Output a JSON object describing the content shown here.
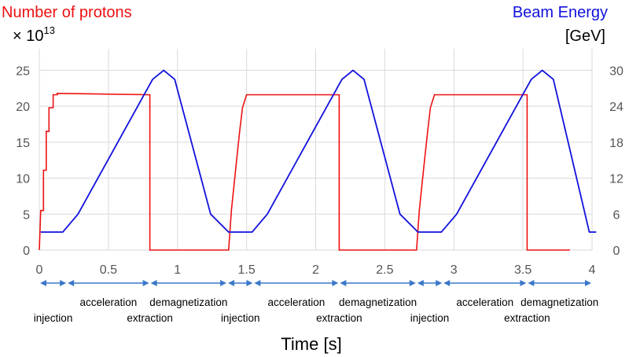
{
  "chart_data": {
    "type": "line",
    "left_title": "Number of protons",
    "left_multiplier_base": "× 10",
    "left_multiplier_exp": "13",
    "right_title": "Beam Energy",
    "right_unit": "[GeV]",
    "xlabel": "Time [s]",
    "xlim": [
      0,
      4
    ],
    "y_left_lim": [
      0,
      28
    ],
    "y_right_lim": [
      0,
      33.6
    ],
    "x_ticks": [
      "0",
      "0.5",
      "1",
      "1.5",
      "2",
      "2.5",
      "3",
      "3.5",
      "4"
    ],
    "y_left_ticks": [
      "0",
      "5",
      "10",
      "15",
      "20",
      "25"
    ],
    "y_right_ticks": [
      "0",
      "6",
      "12",
      "18",
      "24",
      "30"
    ],
    "grid": true,
    "colors": {
      "protons": "#ee1111",
      "energy": "#1111dd",
      "arrows": "#3a78c8",
      "grid": "#d9d9d9",
      "axis_text": "#555555"
    },
    "series": [
      {
        "name": "Number of protons",
        "axis": "left",
        "x": [
          0.0,
          0.01,
          0.03,
          0.03,
          0.05,
          0.05,
          0.07,
          0.07,
          0.1,
          0.1,
          0.13,
          0.13,
          0.8,
          0.8,
          1.37,
          1.37,
          1.39,
          1.39,
          1.42,
          1.42,
          1.45,
          1.45,
          1.47,
          1.47,
          1.5,
          1.5,
          2.17,
          2.17,
          2.73,
          2.73,
          2.75,
          2.75,
          2.78,
          2.78,
          2.81,
          2.81,
          2.83,
          2.83,
          2.86,
          2.86,
          3.53,
          3.53,
          3.84
        ],
        "y": [
          0,
          5.5,
          5.5,
          11.1,
          11.1,
          16.5,
          16.5,
          19.8,
          19.8,
          21.6,
          21.6,
          21.8,
          21.6,
          0,
          0,
          0,
          5.5,
          5.5,
          11.1,
          11.1,
          16.5,
          16.5,
          19.8,
          19.8,
          21.6,
          21.6,
          21.6,
          0,
          0,
          0,
          5.5,
          5.5,
          11.1,
          11.1,
          16.5,
          16.5,
          19.8,
          19.8,
          21.6,
          21.6,
          21.6,
          0,
          0
        ]
      },
      {
        "name": "Beam Energy",
        "axis": "right",
        "x": [
          0.01,
          0.17,
          0.28,
          0.82,
          0.9,
          0.98,
          1.24,
          1.37,
          1.54,
          1.65,
          2.19,
          2.27,
          2.35,
          2.61,
          2.74,
          2.91,
          3.02,
          3.56,
          3.64,
          3.72,
          3.98,
          4.03
        ],
        "y": [
          3,
          3,
          6,
          28.5,
          30,
          28.5,
          6,
          3,
          3,
          6,
          28.5,
          30,
          28.5,
          6,
          3,
          3,
          6,
          28.5,
          30,
          28.5,
          3,
          3
        ]
      }
    ],
    "phases": [
      {
        "label": "injection",
        "start": 0.0,
        "end": 0.2,
        "row": "lower"
      },
      {
        "label": "acceleration",
        "start": 0.2,
        "end": 0.8,
        "row": "upper"
      },
      {
        "label": "extraction",
        "start": 0.8,
        "end": 0.8,
        "row": "lower"
      },
      {
        "label": "demagnetization",
        "start": 0.8,
        "end": 1.36,
        "row": "upper"
      },
      {
        "label": "injection",
        "start": 1.36,
        "end": 1.55,
        "row": "lower"
      },
      {
        "label": "acceleration",
        "start": 1.55,
        "end": 2.17,
        "row": "upper"
      },
      {
        "label": "extraction",
        "start": 2.17,
        "end": 2.17,
        "row": "lower"
      },
      {
        "label": "demagnetization",
        "start": 2.17,
        "end": 2.73,
        "row": "upper"
      },
      {
        "label": "injection",
        "start": 2.73,
        "end": 2.92,
        "row": "lower"
      },
      {
        "label": "acceleration",
        "start": 2.92,
        "end": 3.53,
        "row": "upper"
      },
      {
        "label": "extraction",
        "start": 3.53,
        "end": 3.53,
        "row": "lower"
      },
      {
        "label": "demagnetization",
        "start": 3.53,
        "end": 4.0,
        "row": "upper"
      }
    ]
  }
}
